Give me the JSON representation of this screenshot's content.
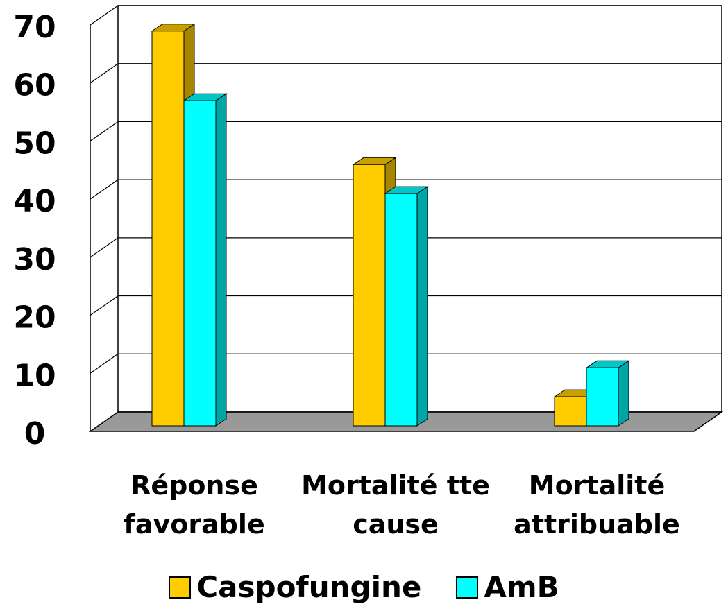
{
  "chart_data": {
    "type": "bar3d",
    "categories": [
      "Réponse favorable",
      "Mortalité tte cause",
      "Mortalité attribuable"
    ],
    "series": [
      {
        "name": "Caspofungine",
        "color": "#ffcc00",
        "values": [
          68,
          45,
          5
        ]
      },
      {
        "name": "AmB",
        "color": "#00ffff",
        "values": [
          56,
          40,
          10
        ]
      }
    ],
    "ylim": [
      0,
      70
    ],
    "yticks": [
      0,
      10,
      20,
      30,
      40,
      50,
      60,
      70
    ],
    "grid": true,
    "legend": "bottom"
  }
}
